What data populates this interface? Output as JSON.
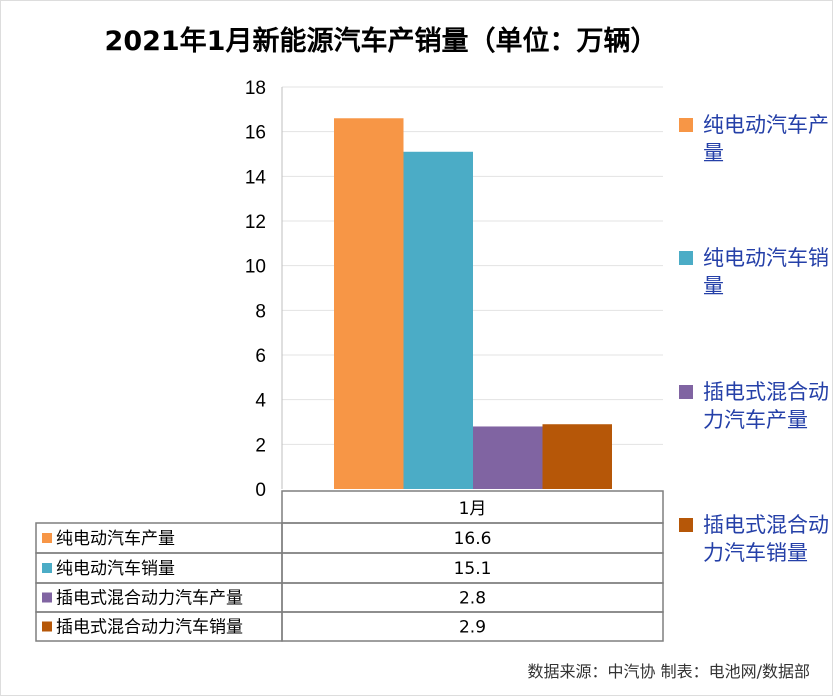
{
  "chart_data": {
    "type": "bar",
    "title": "2021年1月新能源汽车产销量（单位：万辆）",
    "categories": [
      "1月"
    ],
    "series": [
      {
        "name": "纯电动汽车产量",
        "values": [
          16.6
        ],
        "color": "#f79646"
      },
      {
        "name": "纯电动汽车销量",
        "values": [
          15.1
        ],
        "color": "#4bacc6"
      },
      {
        "name": "插电式混合动力汽车产量",
        "values": [
          2.8
        ],
        "color": "#8064a2"
      },
      {
        "name": "插电式混合动力汽车销量",
        "values": [
          2.9
        ],
        "color": "#b65708"
      }
    ],
    "ylim": [
      0,
      18
    ],
    "yticks": [
      "0",
      "2",
      "4",
      "6",
      "8",
      "10",
      "12",
      "14",
      "16",
      "18"
    ],
    "grid": true,
    "legend": "right",
    "data_table": true
  },
  "footer": "数据来源：中汽协  制表：电池网/数据部"
}
